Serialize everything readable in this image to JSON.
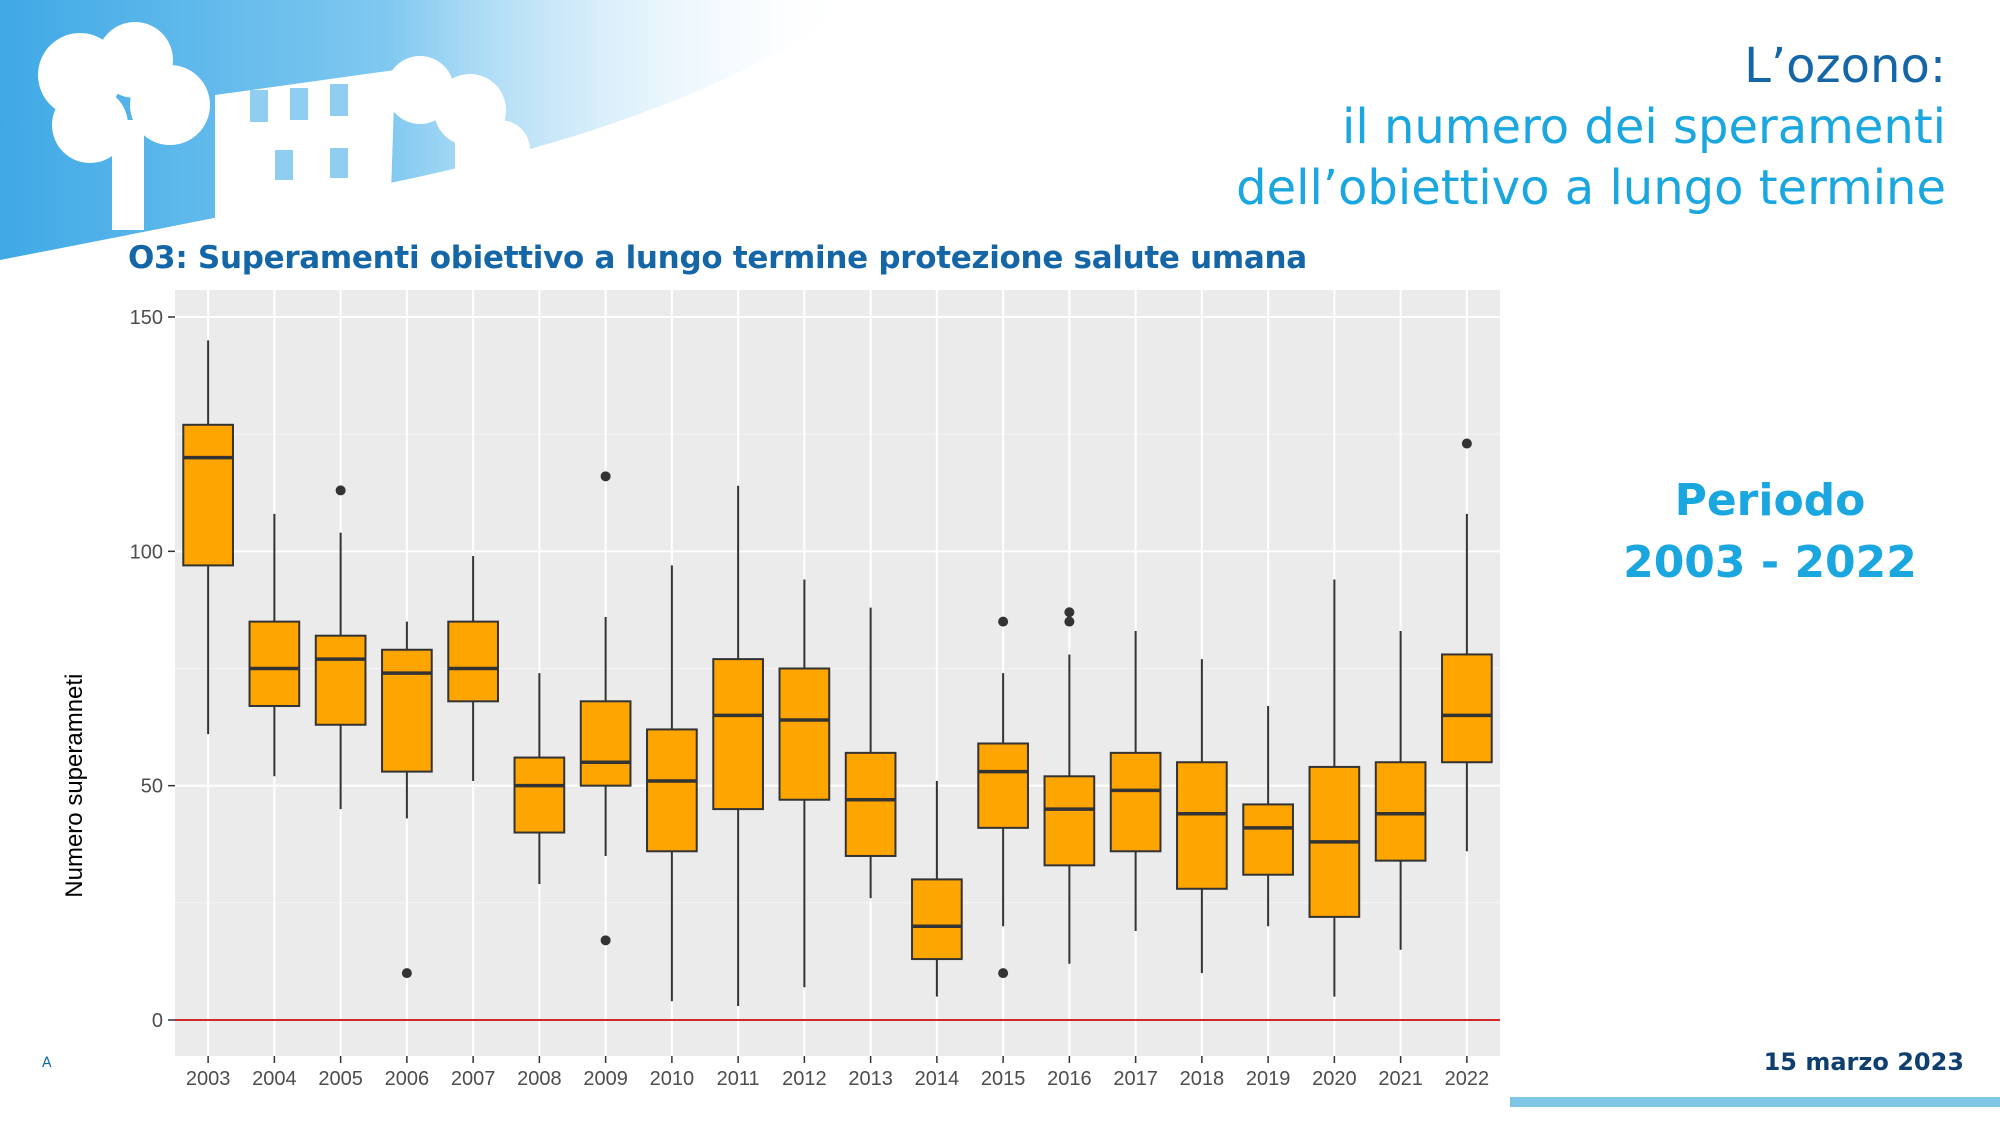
{
  "slide": {
    "title_line1": "L’ozono:",
    "title_line2": "il numero dei speramenti",
    "title_line3": "dell’obiettivo a lungo termine",
    "subtitle": "O3: Superamenti obiettivo a lungo termine protezione salute umana",
    "periodo_label": "Periodo",
    "periodo_range": "2003 - 2022",
    "date": "15 marzo 2023",
    "corner_mark": "A"
  },
  "colors": {
    "dark_blue": "#1466a6",
    "light_blue": "#1aa6df",
    "box_fill": "#ffa500",
    "reference_line": "#d62728",
    "panel_bg": "#ebebeb"
  },
  "chart_data": {
    "type": "boxplot",
    "title": "O3: Superamenti obiettivo a lungo termine protezione salute umana",
    "xlabel": "",
    "ylabel": "Numero superamneti",
    "ylim": [
      -7,
      150
    ],
    "yticks": [
      0,
      50,
      100,
      150
    ],
    "grid": true,
    "reference_line_y": 0,
    "categories": [
      "2003",
      "2004",
      "2005",
      "2006",
      "2007",
      "2008",
      "2009",
      "2010",
      "2011",
      "2012",
      "2013",
      "2014",
      "2015",
      "2016",
      "2017",
      "2018",
      "2019",
      "2020",
      "2021",
      "2022"
    ],
    "boxes": [
      {
        "year": "2003",
        "low": 61,
        "q1": 97,
        "median": 120,
        "q3": 127,
        "high": 145,
        "outliers": []
      },
      {
        "year": "2004",
        "low": 52,
        "q1": 67,
        "median": 75,
        "q3": 85,
        "high": 108,
        "outliers": []
      },
      {
        "year": "2005",
        "low": 45,
        "q1": 63,
        "median": 77,
        "q3": 82,
        "high": 104,
        "outliers": [
          113
        ]
      },
      {
        "year": "2006",
        "low": 43,
        "q1": 53,
        "median": 74,
        "q3": 79,
        "high": 85,
        "outliers": [
          10
        ]
      },
      {
        "year": "2007",
        "low": 51,
        "q1": 68,
        "median": 75,
        "q3": 85,
        "high": 99,
        "outliers": []
      },
      {
        "year": "2008",
        "low": 29,
        "q1": 40,
        "median": 50,
        "q3": 56,
        "high": 74,
        "outliers": []
      },
      {
        "year": "2009",
        "low": 35,
        "q1": 50,
        "median": 55,
        "q3": 68,
        "high": 86,
        "outliers": [
          116,
          17
        ]
      },
      {
        "year": "2010",
        "low": 4,
        "q1": 36,
        "median": 51,
        "q3": 62,
        "high": 97,
        "outliers": []
      },
      {
        "year": "2011",
        "low": 3,
        "q1": 45,
        "median": 65,
        "q3": 77,
        "high": 114,
        "outliers": []
      },
      {
        "year": "2012",
        "low": 7,
        "q1": 47,
        "median": 64,
        "q3": 75,
        "high": 94,
        "outliers": []
      },
      {
        "year": "2013",
        "low": 26,
        "q1": 35,
        "median": 47,
        "q3": 57,
        "high": 88,
        "outliers": []
      },
      {
        "year": "2014",
        "low": 5,
        "q1": 13,
        "median": 20,
        "q3": 30,
        "high": 51,
        "outliers": []
      },
      {
        "year": "2015",
        "low": 20,
        "q1": 41,
        "median": 53,
        "q3": 59,
        "high": 74,
        "outliers": [
          85,
          10
        ]
      },
      {
        "year": "2016",
        "low": 12,
        "q1": 33,
        "median": 45,
        "q3": 52,
        "high": 78,
        "outliers": [
          85,
          87
        ]
      },
      {
        "year": "2017",
        "low": 19,
        "q1": 36,
        "median": 49,
        "q3": 57,
        "high": 83,
        "outliers": []
      },
      {
        "year": "2018",
        "low": 10,
        "q1": 28,
        "median": 44,
        "q3": 55,
        "high": 77,
        "outliers": []
      },
      {
        "year": "2019",
        "low": 20,
        "q1": 31,
        "median": 41,
        "q3": 46,
        "high": 67,
        "outliers": []
      },
      {
        "year": "2020",
        "low": 5,
        "q1": 22,
        "median": 38,
        "q3": 54,
        "high": 94,
        "outliers": []
      },
      {
        "year": "2021",
        "low": 15,
        "q1": 34,
        "median": 44,
        "q3": 55,
        "high": 83,
        "outliers": []
      },
      {
        "year": "2022",
        "low": 36,
        "q1": 55,
        "median": 65,
        "q3": 78,
        "high": 108,
        "outliers": [
          123
        ]
      }
    ]
  }
}
